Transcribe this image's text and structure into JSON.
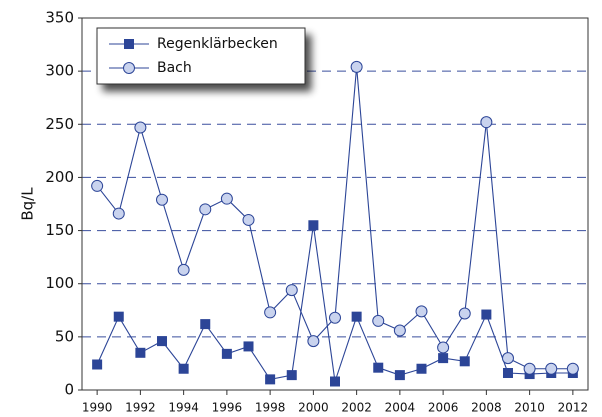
{
  "chart_data": {
    "type": "line",
    "y_label": "Bq/L",
    "x": [
      1990,
      1991,
      1992,
      1993,
      1994,
      1995,
      1996,
      1997,
      1998,
      1999,
      2000,
      2001,
      2002,
      2003,
      2004,
      2005,
      2006,
      2007,
      2008,
      2009,
      2010,
      2011,
      2012
    ],
    "series": [
      {
        "name": "Regenklärbecken",
        "color": "#2c4597",
        "marker": "square",
        "values": [
          24,
          69,
          35,
          46,
          20,
          62,
          34,
          41,
          10,
          14,
          155,
          8,
          69,
          21,
          14,
          20,
          30,
          27,
          71,
          16,
          15,
          16,
          16
        ]
      },
      {
        "name": "Bach",
        "color": "#2c4597",
        "marker": "circle",
        "marker_fill": "#c9d3ee",
        "values": [
          192,
          166,
          247,
          179,
          113,
          170,
          180,
          160,
          73,
          94,
          46,
          68,
          304,
          65,
          56,
          74,
          40,
          72,
          252,
          30,
          20,
          20,
          20
        ]
      }
    ],
    "xlim": [
      1989.3,
      2012.7
    ],
    "xticks": [
      1990,
      1992,
      1994,
      1996,
      1998,
      2000,
      2002,
      2004,
      2006,
      2008,
      2010,
      2012
    ],
    "ylim": [
      0,
      350
    ],
    "yticks": [
      0,
      50,
      100,
      150,
      200,
      250,
      300,
      350
    ],
    "grid": true,
    "legend": "upper left"
  }
}
